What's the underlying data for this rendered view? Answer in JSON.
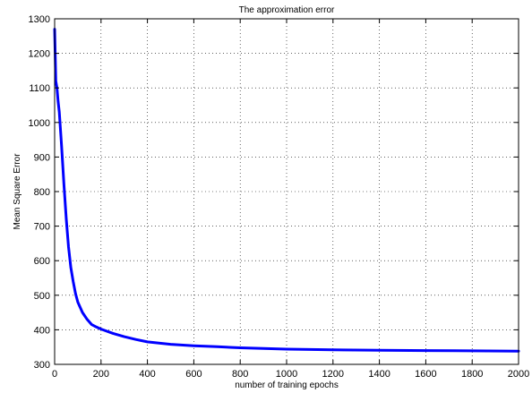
{
  "chart_data": {
    "type": "line",
    "title": "The approximation error",
    "xlabel": "number of training epochs",
    "ylabel": "Mean Square Error",
    "xlim": [
      0,
      2000
    ],
    "ylim": [
      300,
      1300
    ],
    "xticks": [
      0,
      200,
      400,
      600,
      800,
      1000,
      1200,
      1400,
      1600,
      1800,
      2000
    ],
    "yticks": [
      300,
      400,
      500,
      600,
      700,
      800,
      900,
      1000,
      1100,
      1200,
      1300
    ],
    "grid": true,
    "grid_style": "dotted",
    "series": [
      {
        "color": "#0000ff",
        "x": [
          0,
          5,
          10,
          15,
          20,
          30,
          40,
          50,
          60,
          70,
          80,
          90,
          100,
          120,
          140,
          160,
          180,
          200,
          250,
          300,
          350,
          400,
          500,
          600,
          700,
          800,
          900,
          1000,
          1200,
          1400,
          1600,
          1800,
          2000
        ],
        "y": [
          1270,
          1120,
          1100,
          1060,
          1030,
          930,
          820,
          720,
          640,
          580,
          540,
          505,
          480,
          450,
          430,
          415,
          408,
          402,
          390,
          380,
          372,
          365,
          358,
          354,
          351,
          348,
          346,
          344,
          342,
          341,
          340,
          339,
          338
        ]
      }
    ]
  }
}
